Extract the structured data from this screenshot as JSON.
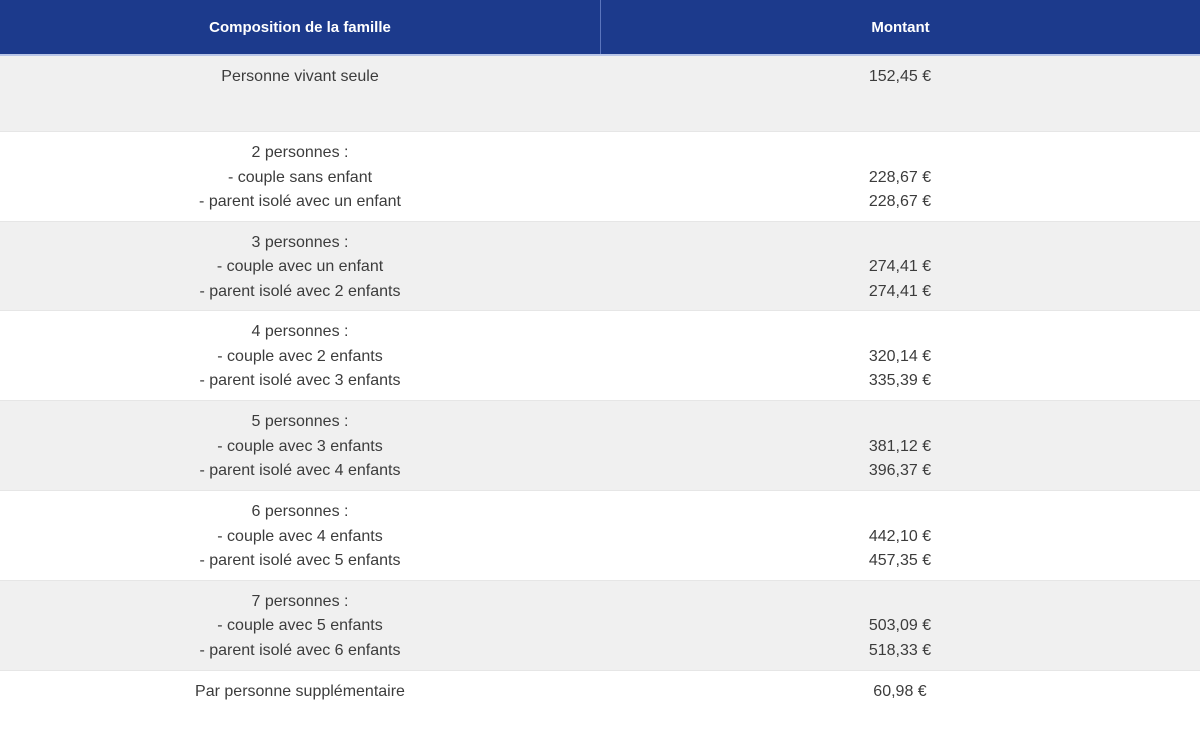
{
  "colors": {
    "header-bg": "#1c3a8c",
    "header-text": "#ffffff",
    "header-divider": "#5b75bd",
    "header-underline": "#b9c6e8",
    "row-gray": "#f0f0f0",
    "row-white": "#ffffff",
    "body-text": "#3c3c3c",
    "row-border": "#e6e6e6"
  },
  "table": {
    "header": {
      "composition": "Composition de la famille",
      "montant": "Montant"
    },
    "rows": [
      {
        "label_lines": [
          "Personne vivant seule"
        ],
        "amount_lines": [
          "152,45 €"
        ]
      },
      {
        "label_lines": [
          "2 personnes :",
          "- couple sans enfant",
          "- parent isolé avec un enfant"
        ],
        "amount_lines": [
          "",
          "228,67 €",
          "228,67 €"
        ]
      },
      {
        "label_lines": [
          "3 personnes :",
          "- couple avec un enfant",
          "- parent isolé avec 2 enfants"
        ],
        "amount_lines": [
          "",
          "274,41 €",
          "274,41 €"
        ]
      },
      {
        "label_lines": [
          "4 personnes :",
          "- couple avec 2 enfants",
          "- parent isolé avec 3 enfants"
        ],
        "amount_lines": [
          "",
          "320,14 €",
          "335,39 €"
        ]
      },
      {
        "label_lines": [
          "5 personnes :",
          "- couple avec 3 enfants",
          "- parent isolé avec 4 enfants"
        ],
        "amount_lines": [
          "",
          "381,12 €",
          "396,37 €"
        ]
      },
      {
        "label_lines": [
          "6 personnes :",
          "- couple avec 4 enfants",
          "- parent isolé avec 5 enfants"
        ],
        "amount_lines": [
          "",
          "442,10 €",
          "457,35 €"
        ]
      },
      {
        "label_lines": [
          "7 personnes :",
          "- couple avec 5 enfants",
          "- parent isolé avec 6 enfants"
        ],
        "amount_lines": [
          "",
          "503,09 €",
          "518,33 €"
        ]
      },
      {
        "label_lines": [
          "Par personne supplémentaire"
        ],
        "amount_lines": [
          "60,98 €"
        ]
      }
    ]
  }
}
